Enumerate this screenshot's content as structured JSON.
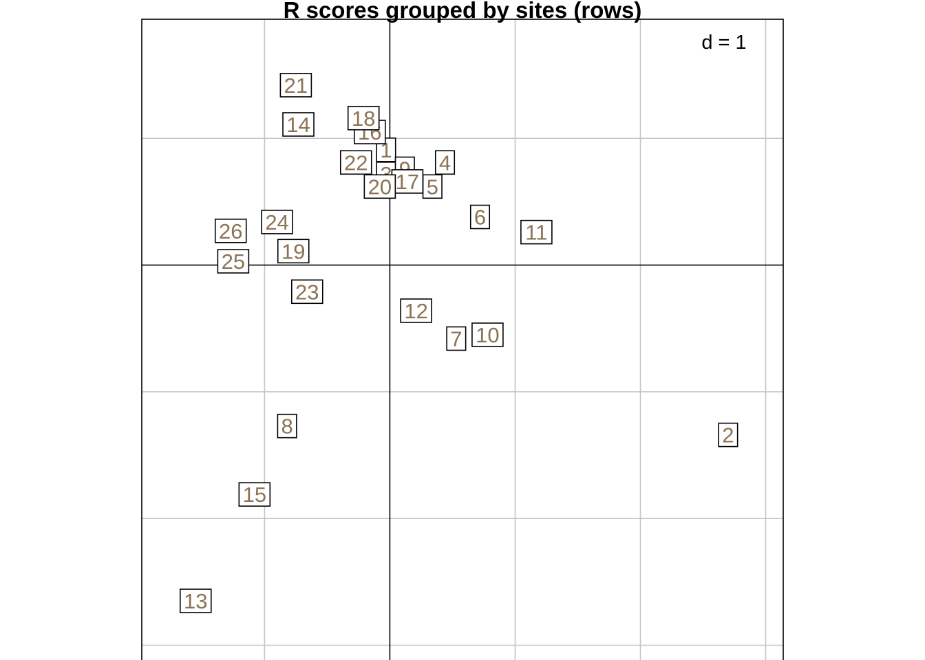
{
  "chart_data": {
    "type": "scatter",
    "title": "R scores grouped by sites (rows)",
    "scale_label": "d = 1",
    "xlim": [
      -1.98,
      3.14
    ],
    "ylim": [
      -3.16,
      1.94
    ],
    "grid_step": 1,
    "grid": true,
    "label_color": "#8b7355",
    "points": [
      {
        "label": "1",
        "x": -0.03,
        "y": 0.91
      },
      {
        "label": "2",
        "x": 2.7,
        "y": -1.34
      },
      {
        "label": "3",
        "x": -0.03,
        "y": 0.72
      },
      {
        "label": "4",
        "x": 0.44,
        "y": 0.81
      },
      {
        "label": "5",
        "x": 0.34,
        "y": 0.62
      },
      {
        "label": "6",
        "x": 0.72,
        "y": 0.38
      },
      {
        "label": "7",
        "x": 0.53,
        "y": -0.58
      },
      {
        "label": "8",
        "x": -0.82,
        "y": -1.27
      },
      {
        "label": "9",
        "x": 0.12,
        "y": 0.76
      },
      {
        "label": "10",
        "x": 0.78,
        "y": -0.55
      },
      {
        "label": "11",
        "x": 1.17,
        "y": 0.26
      },
      {
        "label": "12",
        "x": 0.21,
        "y": -0.36
      },
      {
        "label": "13",
        "x": -1.55,
        "y": -2.65
      },
      {
        "label": "14",
        "x": -0.73,
        "y": 1.11
      },
      {
        "label": "15",
        "x": -1.08,
        "y": -1.81
      },
      {
        "label": "16",
        "x": -0.16,
        "y": 1.05
      },
      {
        "label": "17",
        "x": 0.14,
        "y": 0.66
      },
      {
        "label": "18",
        "x": -0.21,
        "y": 1.16
      },
      {
        "label": "19",
        "x": -0.77,
        "y": 0.11
      },
      {
        "label": "20",
        "x": -0.08,
        "y": 0.62
      },
      {
        "label": "21",
        "x": -0.75,
        "y": 1.42
      },
      {
        "label": "22",
        "x": -0.27,
        "y": 0.81
      },
      {
        "label": "23",
        "x": -0.66,
        "y": -0.21
      },
      {
        "label": "24",
        "x": -0.9,
        "y": 0.34
      },
      {
        "label": "25",
        "x": -1.25,
        "y": 0.03
      },
      {
        "label": "26",
        "x": -1.27,
        "y": 0.27
      }
    ]
  }
}
